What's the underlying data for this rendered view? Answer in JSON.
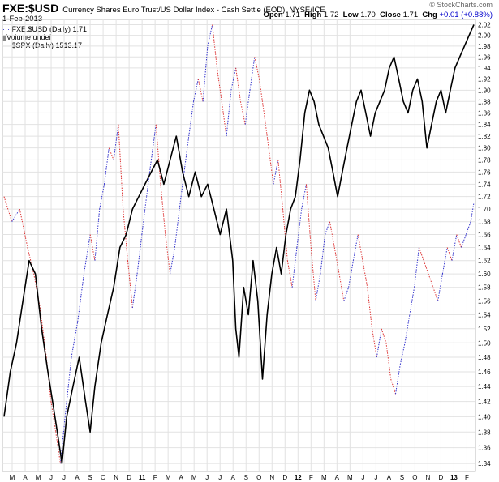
{
  "header": {
    "symbol": "FXE:$USD",
    "description": "Currency Shares Euro Trust/US Dollar Index - Cash Settle (EOD)",
    "exchange": "NYSE/ICE",
    "date": "1-Feb-2013",
    "brand": "© StockCharts.com",
    "quote": {
      "open_label": "Open",
      "open": "1.71",
      "high_label": "High",
      "high": "1.72",
      "low_label": "Low",
      "low": "1.70",
      "close_label": "Close",
      "close": "1.71",
      "chg_label": "Chg",
      "chg": "+0.01 (+0.88%)",
      "chg_color": "#0000cc"
    }
  },
  "legend": {
    "ratio": "FXE:$USD (Daily) 1.71",
    "volume": "Volume undef",
    "spx": "$SPX (Daily) 1513.17"
  },
  "chart_data": {
    "type": "line",
    "x_tick_labels": [
      "M",
      "A",
      "M",
      "J",
      "J",
      "A",
      "S",
      "O",
      "N",
      "D",
      "11",
      "F",
      "M",
      "A",
      "M",
      "J",
      "J",
      "A",
      "S",
      "O",
      "N",
      "D",
      "12",
      "F",
      "M",
      "A",
      "M",
      "J",
      "J",
      "A",
      "S",
      "O",
      "N",
      "D",
      "13",
      "F"
    ],
    "y_tick_labels": [
      "1.34",
      "1.36",
      "1.38",
      "1.40",
      "1.42",
      "1.44",
      "1.46",
      "1.48",
      "1.50",
      "1.52",
      "1.54",
      "1.56",
      "1.58",
      "1.60",
      "1.62",
      "1.64",
      "1.66",
      "1.68",
      "1.70",
      "1.72",
      "1.74",
      "1.76",
      "1.78",
      "1.80",
      "1.82",
      "1.84",
      "1.86",
      "1.88",
      "1.90",
      "1.92",
      "1.94",
      "1.96",
      "1.98",
      "2.00",
      "2.02"
    ],
    "ylim": [
      1.33,
      2.03
    ],
    "y_scale": "log",
    "grid": true,
    "series": [
      {
        "name": "FXE:$USD (Daily)",
        "style": "dotted",
        "color_up": "#3333cc",
        "color_down": "#dd3333",
        "points": [
          [
            0,
            1.72
          ],
          [
            0.5,
            1.68
          ],
          [
            1,
            1.7
          ],
          [
            1.5,
            1.64
          ],
          [
            1.9,
            1.6
          ],
          [
            2.3,
            1.55
          ],
          [
            2.7,
            1.48
          ],
          [
            3,
            1.42
          ],
          [
            3.3,
            1.38
          ],
          [
            3.6,
            1.34
          ],
          [
            3.9,
            1.4
          ],
          [
            4.3,
            1.48
          ],
          [
            4.7,
            1.53
          ],
          [
            5.1,
            1.6
          ],
          [
            5.5,
            1.66
          ],
          [
            5.8,
            1.62
          ],
          [
            6.1,
            1.7
          ],
          [
            6.4,
            1.74
          ],
          [
            6.7,
            1.8
          ],
          [
            7,
            1.78
          ],
          [
            7.3,
            1.84
          ],
          [
            7.6,
            1.7
          ],
          [
            7.9,
            1.62
          ],
          [
            8.2,
            1.55
          ],
          [
            8.5,
            1.6
          ],
          [
            8.8,
            1.66
          ],
          [
            9.1,
            1.72
          ],
          [
            9.4,
            1.78
          ],
          [
            9.7,
            1.84
          ],
          [
            10,
            1.74
          ],
          [
            10.3,
            1.66
          ],
          [
            10.6,
            1.6
          ],
          [
            10.9,
            1.64
          ],
          [
            11.2,
            1.7
          ],
          [
            11.5,
            1.76
          ],
          [
            11.8,
            1.82
          ],
          [
            12.1,
            1.88
          ],
          [
            12.4,
            1.92
          ],
          [
            12.7,
            1.88
          ],
          [
            13,
            1.98
          ],
          [
            13.3,
            2.02
          ],
          [
            13.6,
            1.94
          ],
          [
            13.9,
            1.88
          ],
          [
            14.2,
            1.82
          ],
          [
            14.5,
            1.9
          ],
          [
            14.8,
            1.94
          ],
          [
            15.1,
            1.88
          ],
          [
            15.4,
            1.84
          ],
          [
            15.7,
            1.9
          ],
          [
            16,
            1.96
          ],
          [
            16.3,
            1.92
          ],
          [
            16.6,
            1.86
          ],
          [
            16.9,
            1.8
          ],
          [
            17.2,
            1.74
          ],
          [
            17.5,
            1.78
          ],
          [
            17.8,
            1.7
          ],
          [
            18.1,
            1.62
          ],
          [
            18.4,
            1.58
          ],
          [
            18.7,
            1.64
          ],
          [
            19,
            1.7
          ],
          [
            19.3,
            1.74
          ],
          [
            19.6,
            1.64
          ],
          [
            19.9,
            1.56
          ],
          [
            20.2,
            1.6
          ],
          [
            20.5,
            1.66
          ],
          [
            20.8,
            1.68
          ],
          [
            21.1,
            1.64
          ],
          [
            21.4,
            1.6
          ],
          [
            21.7,
            1.56
          ],
          [
            22,
            1.58
          ],
          [
            22.3,
            1.62
          ],
          [
            22.6,
            1.66
          ],
          [
            22.9,
            1.62
          ],
          [
            23.2,
            1.58
          ],
          [
            23.5,
            1.52
          ],
          [
            23.8,
            1.48
          ],
          [
            24.1,
            1.52
          ],
          [
            24.4,
            1.5
          ],
          [
            24.7,
            1.45
          ],
          [
            25,
            1.43
          ],
          [
            25.3,
            1.47
          ],
          [
            25.6,
            1.5
          ],
          [
            25.9,
            1.54
          ],
          [
            26.2,
            1.58
          ],
          [
            26.5,
            1.64
          ],
          [
            26.8,
            1.62
          ],
          [
            27.1,
            1.6
          ],
          [
            27.4,
            1.58
          ],
          [
            27.7,
            1.56
          ],
          [
            28,
            1.6
          ],
          [
            28.3,
            1.64
          ],
          [
            28.6,
            1.62
          ],
          [
            28.9,
            1.66
          ],
          [
            29.2,
            1.64
          ],
          [
            29.5,
            1.66
          ],
          [
            29.8,
            1.68
          ],
          [
            30,
            1.71
          ]
        ]
      },
      {
        "name": "$SPX (Daily)",
        "style": "solid",
        "color": "#000000",
        "points": [
          [
            0,
            1.4
          ],
          [
            0.4,
            1.46
          ],
          [
            0.8,
            1.5
          ],
          [
            1.2,
            1.56
          ],
          [
            1.6,
            1.62
          ],
          [
            2,
            1.6
          ],
          [
            2.4,
            1.52
          ],
          [
            2.8,
            1.46
          ],
          [
            3.1,
            1.42
          ],
          [
            3.4,
            1.38
          ],
          [
            3.7,
            1.34
          ],
          [
            4,
            1.4
          ],
          [
            4.4,
            1.44
          ],
          [
            4.8,
            1.48
          ],
          [
            5.2,
            1.42
          ],
          [
            5.5,
            1.38
          ],
          [
            5.8,
            1.44
          ],
          [
            6.2,
            1.5
          ],
          [
            6.6,
            1.54
          ],
          [
            7,
            1.58
          ],
          [
            7.4,
            1.64
          ],
          [
            7.8,
            1.66
          ],
          [
            8.2,
            1.7
          ],
          [
            8.6,
            1.72
          ],
          [
            9,
            1.74
          ],
          [
            9.4,
            1.76
          ],
          [
            9.8,
            1.78
          ],
          [
            10.2,
            1.74
          ],
          [
            10.6,
            1.78
          ],
          [
            11,
            1.82
          ],
          [
            11.4,
            1.76
          ],
          [
            11.8,
            1.72
          ],
          [
            12.2,
            1.76
          ],
          [
            12.6,
            1.72
          ],
          [
            13,
            1.74
          ],
          [
            13.4,
            1.7
          ],
          [
            13.8,
            1.66
          ],
          [
            14.2,
            1.7
          ],
          [
            14.6,
            1.62
          ],
          [
            14.8,
            1.52
          ],
          [
            15,
            1.48
          ],
          [
            15.3,
            1.58
          ],
          [
            15.6,
            1.54
          ],
          [
            15.9,
            1.62
          ],
          [
            16.2,
            1.56
          ],
          [
            16.5,
            1.45
          ],
          [
            16.8,
            1.54
          ],
          [
            17.1,
            1.6
          ],
          [
            17.4,
            1.64
          ],
          [
            17.7,
            1.6
          ],
          [
            18,
            1.66
          ],
          [
            18.3,
            1.7
          ],
          [
            18.6,
            1.72
          ],
          [
            18.9,
            1.78
          ],
          [
            19.2,
            1.86
          ],
          [
            19.5,
            1.9
          ],
          [
            19.8,
            1.88
          ],
          [
            20.1,
            1.84
          ],
          [
            20.4,
            1.82
          ],
          [
            20.7,
            1.8
          ],
          [
            21,
            1.76
          ],
          [
            21.3,
            1.72
          ],
          [
            21.6,
            1.76
          ],
          [
            21.9,
            1.8
          ],
          [
            22.2,
            1.84
          ],
          [
            22.5,
            1.88
          ],
          [
            22.8,
            1.9
          ],
          [
            23.1,
            1.86
          ],
          [
            23.4,
            1.82
          ],
          [
            23.7,
            1.86
          ],
          [
            24,
            1.88
          ],
          [
            24.3,
            1.9
          ],
          [
            24.6,
            1.94
          ],
          [
            24.9,
            1.96
          ],
          [
            25.2,
            1.92
          ],
          [
            25.5,
            1.88
          ],
          [
            25.8,
            1.86
          ],
          [
            26.1,
            1.9
          ],
          [
            26.4,
            1.92
          ],
          [
            26.7,
            1.88
          ],
          [
            27,
            1.8
          ],
          [
            27.3,
            1.84
          ],
          [
            27.6,
            1.88
          ],
          [
            27.9,
            1.9
          ],
          [
            28.2,
            1.86
          ],
          [
            28.5,
            1.9
          ],
          [
            28.8,
            1.94
          ],
          [
            29.1,
            1.96
          ],
          [
            29.4,
            1.98
          ],
          [
            29.7,
            2.0
          ],
          [
            30,
            2.02
          ]
        ]
      }
    ]
  }
}
